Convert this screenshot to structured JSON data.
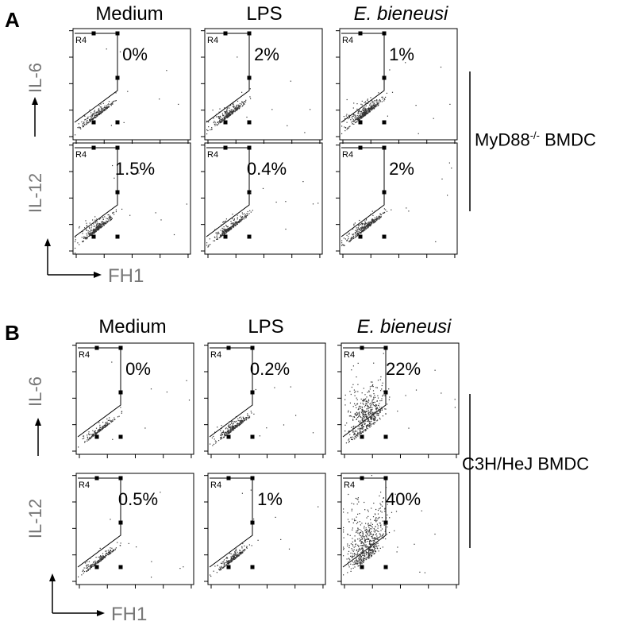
{
  "chart_data": {
    "type": "scatter",
    "gate_label": "R4",
    "panels": [
      {
        "label": "A",
        "columns": [
          "Medium",
          "LPS",
          "E. bieneusi"
        ],
        "rows": [
          "IL-6",
          "IL-12"
        ],
        "group_label_main": "MyD88",
        "group_label_sup": "-/-",
        "group_label_rest": " BMDC",
        "xlabel": "FH1",
        "percentages": [
          [
            "0%",
            "2%",
            "1%"
          ],
          [
            "1.5%",
            "0.4%",
            "2%"
          ]
        ],
        "density": [
          [
            1,
            1.2,
            1.6
          ],
          [
            1.3,
            1.2,
            1.3
          ]
        ]
      },
      {
        "label": "B",
        "columns": [
          "Medium",
          "LPS",
          "E. bieneusi"
        ],
        "rows": [
          "IL-6",
          "IL-12"
        ],
        "group_label_main": "C3H/HeJ BMDC",
        "group_label_sup": "",
        "group_label_rest": "",
        "xlabel": "FH1",
        "percentages": [
          [
            "0%",
            "0.2%",
            "22%"
          ],
          [
            "0.5%",
            "1%",
            "40%"
          ]
        ],
        "density": [
          [
            0.8,
            1.1,
            2.2
          ],
          [
            0.9,
            1.0,
            2.6
          ]
        ]
      }
    ]
  }
}
